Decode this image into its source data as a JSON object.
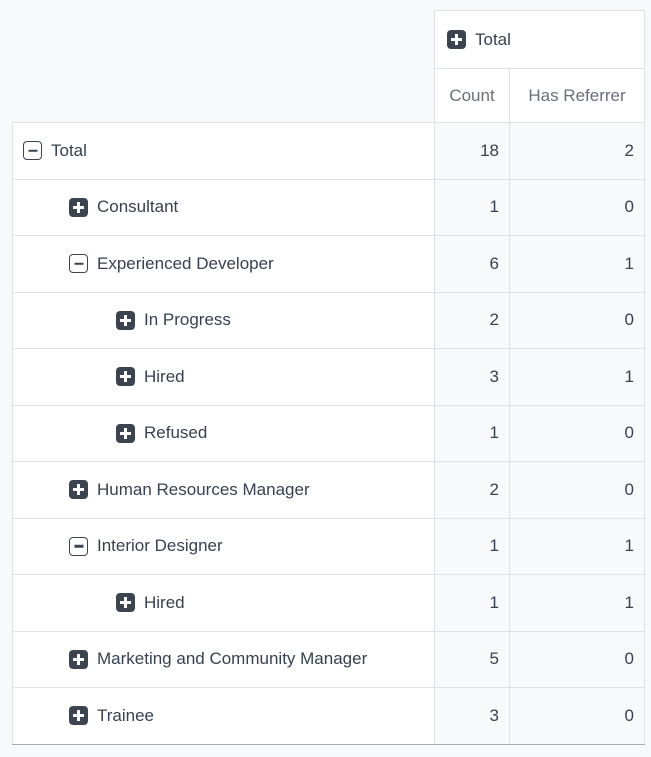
{
  "header": {
    "column_group": {
      "label": "Total",
      "state": "collapsed",
      "icon": "plus-square-icon"
    },
    "measures": [
      {
        "label": "Count"
      },
      {
        "label": "Has Referrer"
      }
    ]
  },
  "rows": [
    {
      "label": "Total",
      "depth": 0,
      "state": "expanded",
      "icon": "minus-square-icon",
      "count": 18,
      "has_referrer": 2
    },
    {
      "label": "Consultant",
      "depth": 1,
      "state": "collapsed",
      "icon": "plus-square-icon",
      "count": 1,
      "has_referrer": 0
    },
    {
      "label": "Experienced Developer",
      "depth": 1,
      "state": "expanded",
      "icon": "minus-square-icon",
      "count": 6,
      "has_referrer": 1
    },
    {
      "label": "In Progress",
      "depth": 2,
      "state": "collapsed",
      "icon": "plus-square-icon",
      "count": 2,
      "has_referrer": 0
    },
    {
      "label": "Hired",
      "depth": 2,
      "state": "collapsed",
      "icon": "plus-square-icon",
      "count": 3,
      "has_referrer": 1
    },
    {
      "label": "Refused",
      "depth": 2,
      "state": "collapsed",
      "icon": "plus-square-icon",
      "count": 1,
      "has_referrer": 0
    },
    {
      "label": "Human Resources Manager",
      "depth": 1,
      "state": "collapsed",
      "icon": "plus-square-icon",
      "count": 2,
      "has_referrer": 0
    },
    {
      "label": "Interior Designer",
      "depth": 1,
      "state": "expanded",
      "icon": "minus-square-icon",
      "count": 1,
      "has_referrer": 1
    },
    {
      "label": "Hired",
      "depth": 2,
      "state": "collapsed",
      "icon": "plus-square-icon",
      "count": 1,
      "has_referrer": 1
    },
    {
      "label": "Marketing and Community Manager",
      "depth": 1,
      "state": "collapsed",
      "icon": "plus-square-icon",
      "count": 5,
      "has_referrer": 0
    },
    {
      "label": "Trainee",
      "depth": 1,
      "state": "collapsed",
      "icon": "plus-square-icon",
      "count": 3,
      "has_referrer": 0
    }
  ],
  "colors": {
    "page_bg": "#f8f9fb",
    "header_cell_bg": "#ffffff",
    "row_header_cell_bg": "#ffffff",
    "value_cell_bg": "#f8f9fa",
    "border": "#dee2e6",
    "outer_bottom_border": "#a9aeb4",
    "text": "#374151",
    "muted_text": "#69707d",
    "toggle_icon": "#3c4450"
  }
}
